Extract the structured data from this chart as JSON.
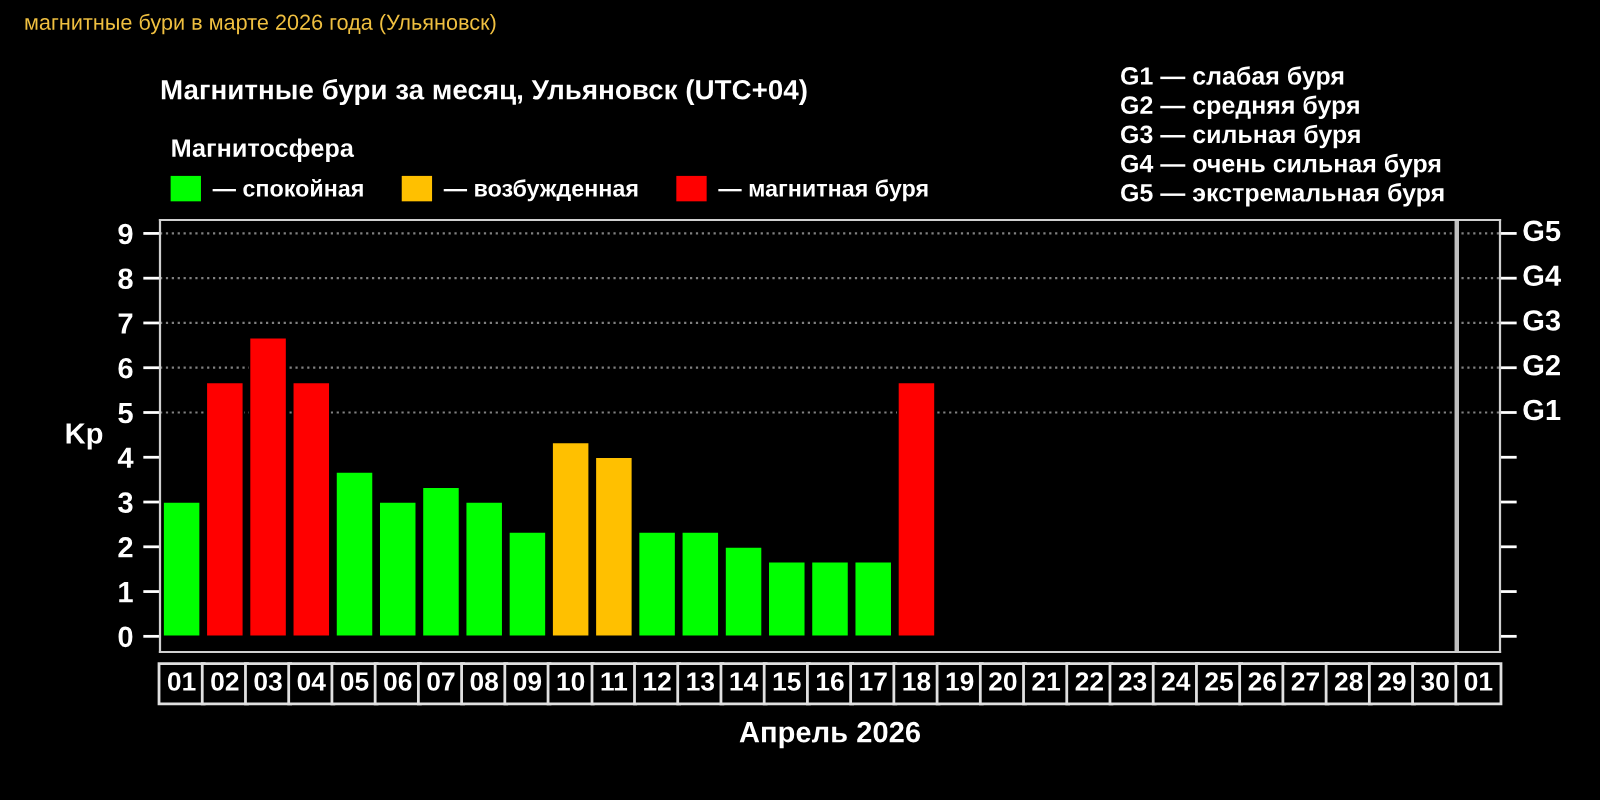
{
  "chart_data": {
    "type": "bar",
    "title": "Магнитные бури за месяц, Ульяновск (UTC+04)",
    "xlabel": "Апрель 2026",
    "ylabel": "Kp",
    "legend_title": "Магнитосфера",
    "legend": "top left",
    "x": [
      "2026-04-01T12:00",
      "2026-04-02T12:00",
      "2026-04-03T12:00",
      "2026-04-04T12:00",
      "2026-04-05T12:00",
      "2026-04-06T12:00",
      "2026-04-07T12:00",
      "2026-04-08T12:00",
      "2026-04-09T12:00",
      "2026-04-10T12:00",
      "2026-04-11T12:00",
      "2026-04-12T12:00",
      "2026-04-13T12:00",
      "2026-04-14T12:00",
      "2026-04-15T12:00",
      "2026-04-16T12:00",
      "2026-04-17T12:00",
      "2026-04-18T12:00"
    ],
    "series": [
      {
        "name": "— спокойная",
        "color": "#00ff00",
        "values": [
          3,
          null,
          null,
          null,
          3.67,
          3,
          3.33,
          3,
          2.33,
          null,
          null,
          2.33,
          2.33,
          2,
          1.67,
          1.67,
          1.67,
          null
        ]
      },
      {
        "name": "— возбужденная",
        "color": "#ffc000",
        "values": [
          null,
          null,
          null,
          null,
          null,
          null,
          null,
          null,
          null,
          4.33,
          4,
          null,
          null,
          null,
          null,
          null,
          null,
          null
        ]
      },
      {
        "name": "— магнитная буря",
        "color": "#ff0000",
        "values": [
          null,
          5.67,
          6.67,
          5.67,
          null,
          null,
          null,
          null,
          null,
          null,
          null,
          null,
          null,
          null,
          null,
          null,
          null,
          5.67
        ]
      }
    ],
    "xlim": [
      "2026-04-01",
      "2026-05-02"
    ],
    "xticks": [
      {
        "value": "2026-04-01T12:00",
        "label": "01"
      },
      {
        "value": "2026-04-02T12:00",
        "label": "02"
      },
      {
        "value": "2026-04-03T12:00",
        "label": "03"
      },
      {
        "value": "2026-04-04T12:00",
        "label": "04"
      },
      {
        "value": "2026-04-05T12:00",
        "label": "05"
      },
      {
        "value": "2026-04-06T12:00",
        "label": "06"
      },
      {
        "value": "2026-04-07T12:00",
        "label": "07"
      },
      {
        "value": "2026-04-08T12:00",
        "label": "08"
      },
      {
        "value": "2026-04-09T12:00",
        "label": "09"
      },
      {
        "value": "2026-04-10T12:00",
        "label": "10"
      },
      {
        "value": "2026-04-11T12:00",
        "label": "11"
      },
      {
        "value": "2026-04-12T12:00",
        "label": "12"
      },
      {
        "value": "2026-04-13T12:00",
        "label": "13"
      },
      {
        "value": "2026-04-14T12:00",
        "label": "14"
      },
      {
        "value": "2026-04-15T12:00",
        "label": "15"
      },
      {
        "value": "2026-04-16T12:00",
        "label": "16"
      },
      {
        "value": "2026-04-17T12:00",
        "label": "17"
      },
      {
        "value": "2026-04-18T12:00",
        "label": "18"
      },
      {
        "value": "2026-04-19T12:00",
        "label": "19"
      },
      {
        "value": "2026-04-20T12:00",
        "label": "20"
      },
      {
        "value": "2026-04-21T12:00",
        "label": "21"
      },
      {
        "value": "2026-04-22T12:00",
        "label": "22"
      },
      {
        "value": "2026-04-23T12:00",
        "label": "23"
      },
      {
        "value": "2026-04-24T12:00",
        "label": "24"
      },
      {
        "value": "2026-04-25T12:00",
        "label": "25"
      },
      {
        "value": "2026-04-26T12:00",
        "label": "26"
      },
      {
        "value": "2026-04-27T12:00",
        "label": "27"
      },
      {
        "value": "2026-04-28T12:00",
        "label": "28"
      },
      {
        "value": "2026-04-29T12:00",
        "label": "29"
      },
      {
        "value": "2026-04-30T12:00",
        "label": "30"
      },
      {
        "value": "2026-05-01T12:00",
        "label": "01"
      }
    ],
    "ylim": [
      -0.35,
      9.3
    ],
    "yticks": [
      0,
      1,
      2,
      3,
      4,
      5,
      6,
      7,
      8,
      9
    ],
    "ref_lines": [
      {
        "axis": "y",
        "value": 5,
        "label": "G1",
        "color": "#808080",
        "line_style": "dotted"
      },
      {
        "axis": "y",
        "value": 6,
        "label": "G2",
        "color": "#808080",
        "line_style": "dotted"
      },
      {
        "axis": "y",
        "value": 7,
        "label": "G3",
        "color": "#808080",
        "line_style": "dotted"
      },
      {
        "axis": "y",
        "value": 8,
        "label": "G4",
        "color": "#808080",
        "line_style": "dotted"
      },
      {
        "axis": "y",
        "value": 9,
        "label": "G5",
        "color": "#808080",
        "line_style": "dotted"
      },
      {
        "axis": "x",
        "value": "2026-05-01",
        "color": "#c0c0c0",
        "line_style": "solid"
      }
    ],
    "annotations": [
      "магнитные бури в марте 2026 года (Ульяновск)",
      "G1 — слабая буря",
      "G2 — средняя буря",
      "G3 — сильная буря",
      "G4 — очень сильная буря",
      "G5 — экстремальная буря"
    ]
  }
}
